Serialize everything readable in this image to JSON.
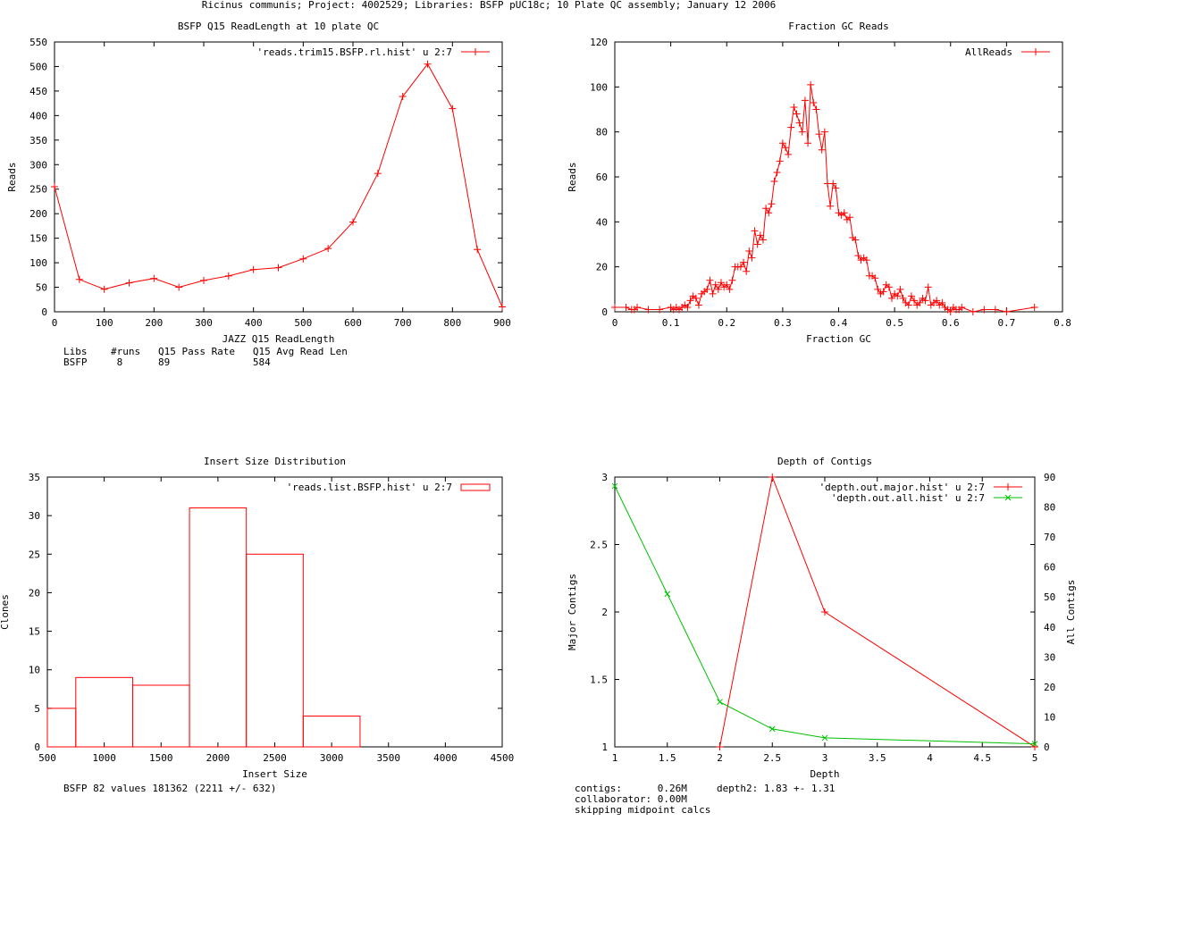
{
  "page_title": "Ricinus communis; Project: 4002529; Libraries: BSFP pUC18c; 10 Plate QC assembly; January 12 2006",
  "chart_data": [
    {
      "id": "readlength",
      "type": "line",
      "title": "BSFP Q15 ReadLength at 10 plate QC",
      "xlabel": "JAZZ Q15 ReadLength",
      "ylabel": "Reads",
      "xlim": [
        0,
        900
      ],
      "ylim": [
        0,
        550
      ],
      "xticks": [
        0,
        100,
        200,
        300,
        400,
        500,
        600,
        700,
        800,
        900
      ],
      "yticks": [
        0,
        50,
        100,
        150,
        200,
        250,
        300,
        350,
        400,
        450,
        500,
        550
      ],
      "series": [
        {
          "name": "'reads.trim15.BSFP.rl.hist' u 2:7",
          "color": "#ff0000",
          "marker": "+",
          "x": [
            0,
            50,
            100,
            150,
            200,
            250,
            300,
            350,
            400,
            450,
            500,
            550,
            600,
            650,
            700,
            750,
            800,
            850,
            900
          ],
          "y": [
            255,
            66,
            46,
            59,
            68,
            50,
            64,
            73,
            86,
            90,
            108,
            129,
            183,
            282,
            439,
            505,
            414,
            127,
            10
          ]
        }
      ],
      "legend": "top-right",
      "notes": [
        "Libs    #runs   Q15 Pass Rate   Q15 Avg Read Len",
        "BSFP     8      89              584"
      ]
    },
    {
      "id": "gc",
      "type": "line",
      "title": "Fraction GC Reads",
      "xlabel": "Fraction GC",
      "ylabel": "Reads",
      "xlim": [
        0,
        0.8
      ],
      "ylim": [
        0,
        120
      ],
      "xticks": [
        0,
        0.1,
        0.2,
        0.3,
        0.4,
        0.5,
        0.6,
        0.7,
        0.8
      ],
      "ytick_labels": [
        "0",
        "20",
        "40",
        "60",
        "80",
        "100",
        "120"
      ],
      "yticks": [
        0,
        20,
        40,
        60,
        80,
        100,
        120
      ],
      "xtick_labels": [
        "0",
        "0.1",
        "0.2",
        "0.3",
        "0.4",
        "0.5",
        "0.6",
        "0.7",
        "0.8"
      ],
      "series": [
        {
          "name": "AllReads",
          "color": "#ff0000",
          "marker": "+",
          "x": [
            0,
            0.02,
            0.03,
            0.035,
            0.04,
            0.06,
            0.08,
            0.1,
            0.105,
            0.11,
            0.115,
            0.12,
            0.125,
            0.13,
            0.135,
            0.14,
            0.145,
            0.15,
            0.155,
            0.16,
            0.165,
            0.17,
            0.175,
            0.18,
            0.185,
            0.19,
            0.195,
            0.2,
            0.205,
            0.21,
            0.215,
            0.22,
            0.225,
            0.23,
            0.235,
            0.24,
            0.245,
            0.25,
            0.255,
            0.26,
            0.265,
            0.27,
            0.275,
            0.28,
            0.285,
            0.29,
            0.295,
            0.3,
            0.305,
            0.31,
            0.315,
            0.32,
            0.325,
            0.33,
            0.335,
            0.34,
            0.345,
            0.35,
            0.355,
            0.36,
            0.365,
            0.37,
            0.375,
            0.38,
            0.385,
            0.39,
            0.395,
            0.4,
            0.405,
            0.41,
            0.415,
            0.42,
            0.425,
            0.43,
            0.435,
            0.44,
            0.445,
            0.45,
            0.455,
            0.46,
            0.465,
            0.47,
            0.475,
            0.48,
            0.485,
            0.49,
            0.495,
            0.5,
            0.505,
            0.51,
            0.515,
            0.52,
            0.525,
            0.53,
            0.535,
            0.54,
            0.545,
            0.55,
            0.555,
            0.56,
            0.565,
            0.57,
            0.575,
            0.58,
            0.585,
            0.59,
            0.595,
            0.6,
            0.605,
            0.61,
            0.615,
            0.62,
            0.64,
            0.66,
            0.68,
            0.7,
            0.75
          ],
          "y": [
            2,
            2,
            1,
            1,
            2,
            1,
            1,
            2,
            1,
            2,
            1,
            2,
            3,
            2,
            5,
            7,
            6,
            3,
            8,
            9,
            10,
            14,
            8,
            12,
            10,
            13,
            11,
            12,
            10,
            14,
            20,
            20,
            20,
            22,
            18,
            27,
            24,
            36,
            30,
            34,
            32,
            46,
            44,
            48,
            58,
            62,
            67,
            75,
            73,
            70,
            82,
            91,
            88,
            84,
            80,
            94,
            75,
            101,
            93,
            90,
            79,
            72,
            80,
            57,
            47,
            57,
            55,
            44,
            43,
            44,
            41,
            42,
            33,
            32,
            25,
            23,
            24,
            23,
            16,
            16,
            15,
            10,
            8,
            9,
            12,
            11,
            6,
            8,
            7,
            10,
            6,
            4,
            3,
            7,
            5,
            3,
            4,
            6,
            5,
            11,
            3,
            4,
            5,
            3,
            4,
            2,
            1,
            0,
            2,
            1,
            1,
            2,
            0,
            1,
            1,
            0,
            2
          ]
        }
      ],
      "legend": "top-right"
    },
    {
      "id": "insert",
      "type": "bar",
      "title": "Insert Size Distribution",
      "xlabel": "Insert Size",
      "ylabel": "Clones",
      "xlim": [
        500,
        4500
      ],
      "ylim": [
        0,
        35
      ],
      "xticks": [
        500,
        1000,
        1500,
        2000,
        2500,
        3000,
        3500,
        4000,
        4500
      ],
      "yticks": [
        0,
        5,
        10,
        15,
        20,
        25,
        30,
        35
      ],
      "bins": [
        {
          "from": 500,
          "to": 750,
          "value": 5
        },
        {
          "from": 750,
          "to": 1250,
          "value": 9
        },
        {
          "from": 1250,
          "to": 1750,
          "value": 8
        },
        {
          "from": 1750,
          "to": 2250,
          "value": 31
        },
        {
          "from": 2250,
          "to": 2750,
          "value": 25
        },
        {
          "from": 2750,
          "to": 3250,
          "value": 4
        }
      ],
      "series_name": "'reads.list.BSFP.hist' u 2:7",
      "color": "#ff0000",
      "legend": "top-right",
      "notes": [
        "BSFP 82 values 181362 (2211 +/- 632)"
      ]
    },
    {
      "id": "depth",
      "type": "line",
      "title": "Depth of Contigs",
      "xlabel": "Depth",
      "ylabel": "Major Contigs",
      "y2label": "All Contigs",
      "xlim": [
        1,
        5
      ],
      "ylim": [
        1,
        3
      ],
      "y2lim": [
        0,
        90
      ],
      "xticks": [
        1,
        1.5,
        2,
        2.5,
        3,
        3.5,
        4,
        4.5,
        5
      ],
      "yticks": [
        1,
        1.5,
        2,
        2.5,
        3
      ],
      "y2ticks": [
        0,
        10,
        20,
        30,
        40,
        50,
        60,
        70,
        80,
        90
      ],
      "series": [
        {
          "name": "'depth.out.major.hist' u 2:7",
          "color": "#ff0000",
          "marker": "+",
          "axis": "y1",
          "x": [
            2,
            2.5,
            3,
            5
          ],
          "y": [
            1,
            3,
            2,
            1
          ]
        },
        {
          "name": "'depth.out.all.hist' u 2:7",
          "color": "#00c000",
          "marker": "x",
          "axis": "y2",
          "x": [
            1,
            1.5,
            2,
            2.5,
            3,
            5
          ],
          "y": [
            87,
            51,
            15,
            6,
            3,
            1
          ]
        }
      ],
      "legend": "top-right",
      "notes": [
        "contigs:      0.26M     depth2: 1.83 +- 1.31",
        "collaborator: 0.00M",
        "skipping midpoint calcs"
      ]
    }
  ]
}
